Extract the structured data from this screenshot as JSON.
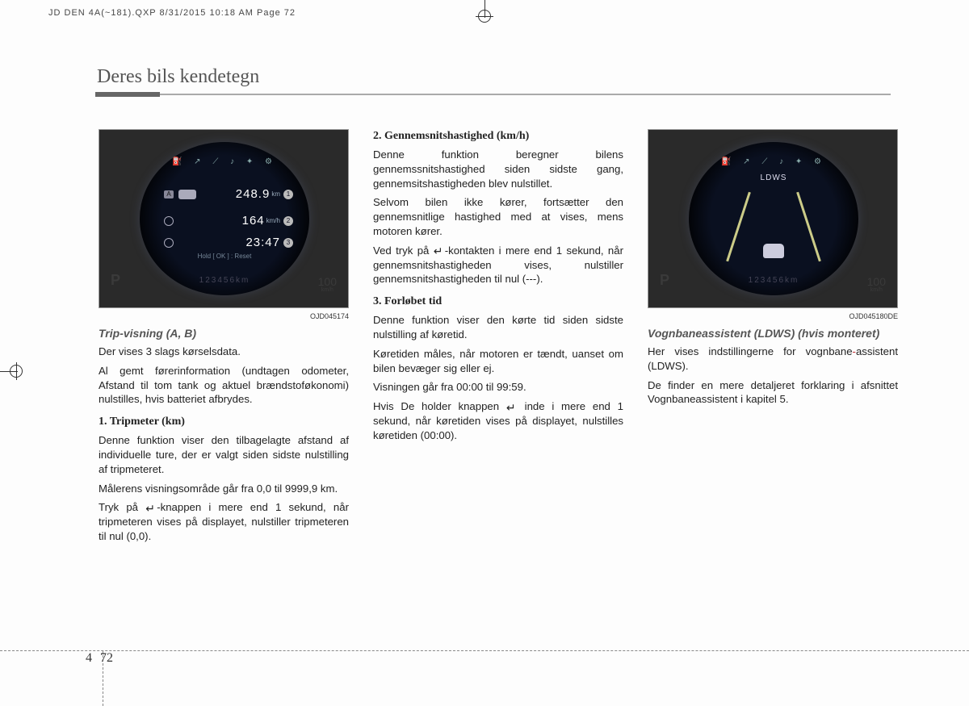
{
  "print_header": "JD DEN 4A(~181).QXP  8/31/2015  10:18 AM  Page 72",
  "page_title": "Deres bils kendetegn",
  "page_num_chapter": "4",
  "page_num_page": "72",
  "col1": {
    "img_code": "OJD045174",
    "gauge": {
      "icons_row": "⛽ ↗ ⟋ ♪ ✦ ⚙",
      "row1_val": "248.9",
      "row1_unit": "km",
      "row1_badge": "1",
      "row2_val": "164",
      "row2_unit": "km/h",
      "row2_badge": "2",
      "row3_val": "23:47",
      "row3_badge": "3",
      "hold_text": "Hold [ OK ] : Reset",
      "odo": "123456km",
      "gear": "P",
      "speed": "100",
      "speed_unit": "km/h",
      "a_label": "A"
    },
    "caption": "Trip-visning (A, B)",
    "p1": "Der vises 3 slags kørselsdata.",
    "p2": "Al gemt førerinformation (undtagen odometer, Afstand til tom tank og aktuel brændstoføkonomi) nulstilles, hvis batteriet afbrydes.",
    "h1": "1. Tripmeter (km)",
    "p3": "Denne funktion viser den tilbagelagte afstand af individuelle ture, der er valgt siden sidste nulstilling af tripmeteret.",
    "p4": "Målerens visningsområde går fra 0,0 til 9999,9 km.",
    "p5a": "Tryk på ",
    "p5b": "-knappen i mere end 1 sekund, når tripmeteren vises på displayet, nulstiller tripmeteren til nul (0,0)."
  },
  "col2": {
    "h1": "2. Gennemsnitshastighed (km/h)",
    "p1": "Denne funktion beregner bilens gennemssnitshastighed siden sidste gang, gennemsitshastigheden blev nulstillet.",
    "p2": "Selvom bilen ikke kører, fortsætter den gennemsnitlige hastighed med at vises, mens motoren kører.",
    "p3a": "Ved tryk på ",
    "p3b": "-kontakten i mere end 1 sekund, når gennemsnitshastigheden vises, nulstiller gennemsnitshastigheden til nul (---).",
    "h2": "3. Forløbet tid",
    "p4": "Denne funktion viser den kørte tid siden sidste nulstilling af køretid.",
    "p5": "Køretiden måles, når motoren er tændt, uanset om bilen bevæger sig eller ej.",
    "p6": "Visningen går fra 00:00 til 99:59.",
    "p7a": "Hvis De holder knappen ",
    "p7b": " inde i mere end 1 sekund, når køretiden vises på displayet, nulstilles køretiden (00:00)."
  },
  "col3": {
    "img_code": "OJD045180DE",
    "gauge": {
      "icons_row": "⛽ ↗ ⟋ ♪ ✦ ⚙",
      "ldws_label": "LDWS",
      "odo": "123456km",
      "gear": "P",
      "speed": "100",
      "speed_unit": "km/h"
    },
    "caption": "Vognbaneassistent (LDWS) (hvis monteret)",
    "p1a": "Her vises indstillingerne for vognbane",
    "p1b": "-",
    "p1c": "assistent (LDWS).",
    "p2": "De finder en mere detaljeret forklaring i afsnittet Vognbaneassistent i kapitel 5."
  }
}
